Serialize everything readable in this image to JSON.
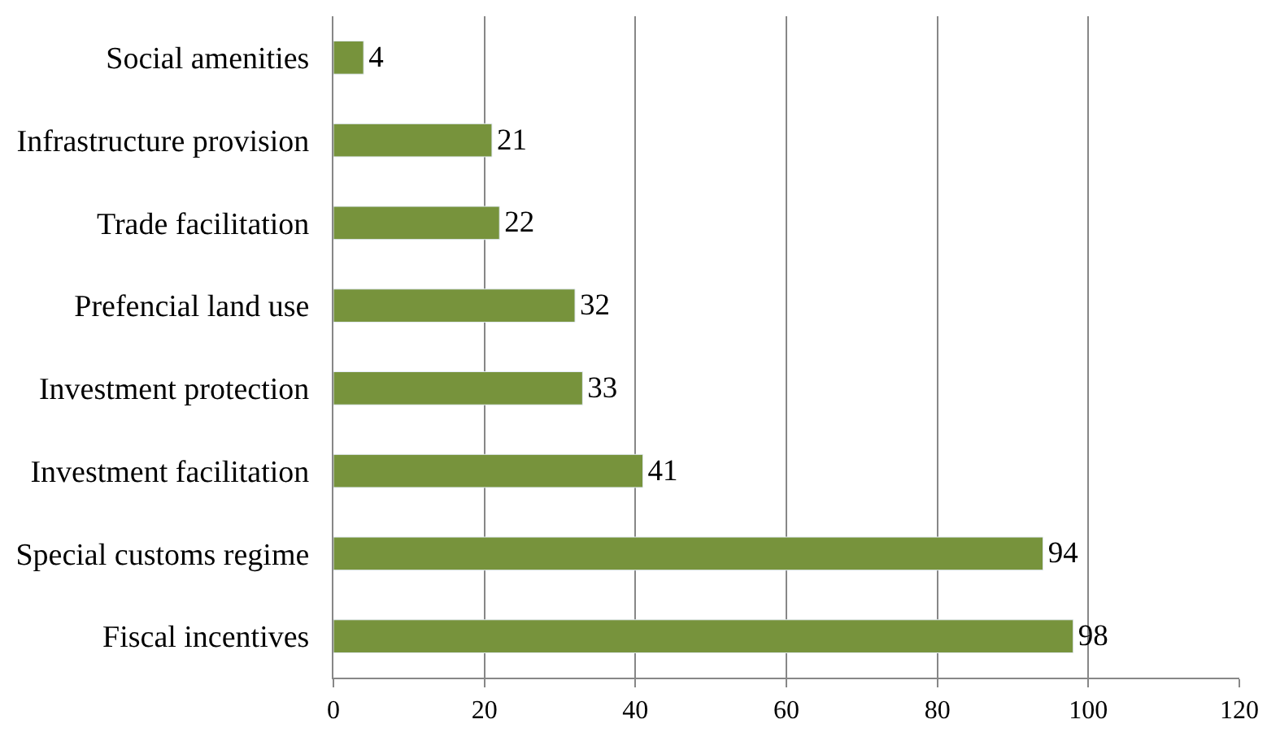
{
  "chart_data": {
    "type": "bar",
    "orientation": "horizontal",
    "categories": [
      "Social amenities",
      "Infrastructure provision",
      "Trade facilitation",
      "Prefencial land use",
      "Investment protection",
      "Investment facilitation",
      "Special customs regime",
      "Fiscal incentives"
    ],
    "values": [
      4,
      21,
      22,
      32,
      33,
      41,
      94,
      98
    ],
    "color": "#77933c",
    "xlim": [
      0,
      120
    ],
    "xticks": [
      0,
      20,
      40,
      60,
      80,
      100,
      120
    ],
    "grid": "x",
    "data_labels": true,
    "legend": false
  }
}
